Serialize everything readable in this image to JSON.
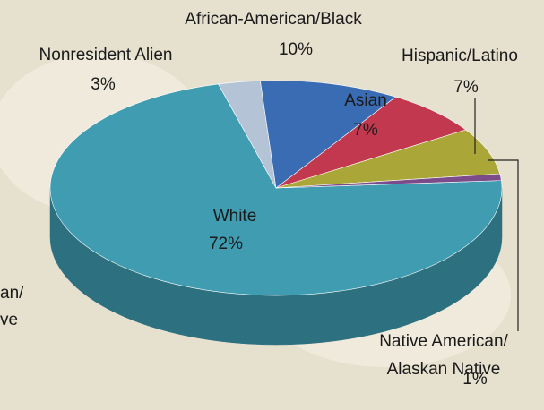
{
  "chart_data": {
    "type": "pie",
    "categories": [
      "White",
      "Nonresident Alien",
      "African-American/Black",
      "Asian",
      "Hispanic/Latino",
      "Native American/Alaskan Native"
    ],
    "values": [
      72,
      3,
      10,
      7,
      7,
      1
    ],
    "value_labels": [
      "72%",
      "3%",
      "10%",
      "7%",
      "7%",
      "1%"
    ],
    "colors": [
      "#3f9cb1",
      "#b4c3d5",
      "#3a6cb4",
      "#c2394f",
      "#aaa637",
      "#7b4b8a"
    ],
    "three_d": true
  },
  "background_text": [
    "an/",
    "ve"
  ]
}
